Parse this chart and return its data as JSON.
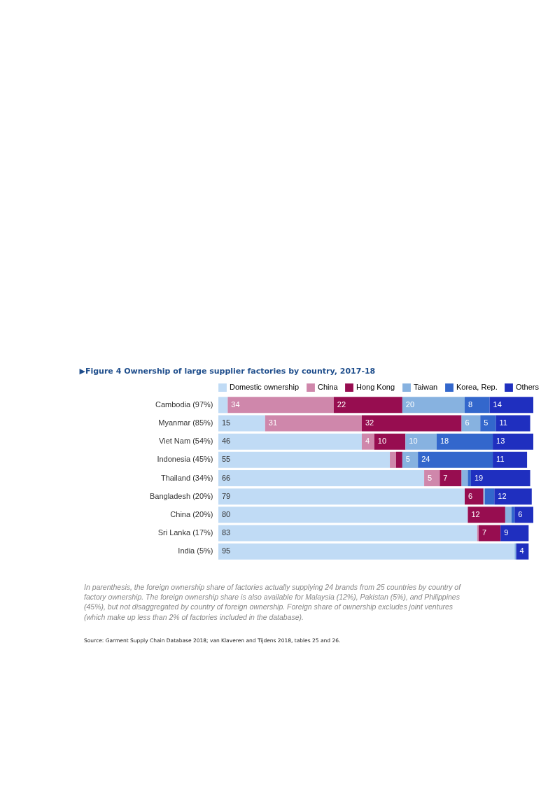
{
  "chart_data": {
    "type": "bar",
    "orientation": "horizontal",
    "stacked": true,
    "title": "▶Figure 4 Ownership of large supplier factories by country, 2017-18",
    "categories": [
      "Cambodia (97%)",
      "Myanmar (85%)",
      "Viet Nam (54%)",
      "Indonesia (45%)",
      "Thailand (34%)",
      "Bangladesh (20%)",
      "China (20%)",
      "Sri Lanka (17%)",
      "India (5%)"
    ],
    "series": [
      {
        "name": "Domestic ownership",
        "color": "#c0dbf5",
        "values": [
          3,
          15,
          46,
          55,
          66,
          79,
          80,
          83,
          95
        ],
        "value_labels": [
          null,
          "15",
          "46",
          "55",
          "66",
          "79",
          "80",
          "83",
          "95"
        ]
      },
      {
        "name": "China",
        "color": "#cf87ab",
        "values": [
          34,
          31,
          4,
          2,
          5,
          0,
          0,
          0.5,
          0
        ],
        "value_labels": [
          "34",
          "31",
          "4",
          null,
          "5",
          null,
          null,
          null,
          null
        ]
      },
      {
        "name": "Hong Kong",
        "color": "#970d50",
        "values": [
          22,
          32,
          10,
          2,
          7,
          6,
          12,
          7,
          0
        ],
        "value_labels": [
          "22",
          "32",
          "10",
          null,
          "7",
          "6",
          "12",
          "7",
          null
        ]
      },
      {
        "name": "Taiwan",
        "color": "#87b2e0",
        "values": [
          20,
          6,
          10,
          5,
          2,
          0.5,
          2,
          0,
          0.5
        ],
        "value_labels": [
          "20",
          "6",
          "10",
          "5",
          null,
          null,
          null,
          null,
          null
        ]
      },
      {
        "name": "Korea, Rep.",
        "color": "#3367cc",
        "values": [
          8,
          5,
          18,
          24,
          1,
          3,
          1,
          0,
          0
        ],
        "value_labels": [
          "8",
          "5",
          "18",
          "24",
          null,
          null,
          null,
          null,
          null
        ]
      },
      {
        "name": "Others",
        "color": "#1f2fbf",
        "values": [
          14,
          11,
          13,
          11,
          19,
          12,
          6,
          9,
          4
        ],
        "value_labels": [
          "14",
          "11",
          "13",
          "11",
          "19",
          "12",
          "6",
          "9",
          "4"
        ]
      }
    ],
    "legend": "top",
    "annotations": [
      "In parenthesis, the foreign ownership share of factories actually supplying 24 brands from 25 countries by country of factory ownership. The foreign ownership share is also available for Malaysia (12%), Pakistan (5%), and Philippines (45%), but not disaggregated by country of foreign ownership. Foreign share of ownership excludes joint ventures (which make up less than 2% of factories included in the database).",
      "Source: Garment Supply Chain Database 2018; van Klaveren and Tijdens 2018, tables 25 and 26."
    ]
  }
}
